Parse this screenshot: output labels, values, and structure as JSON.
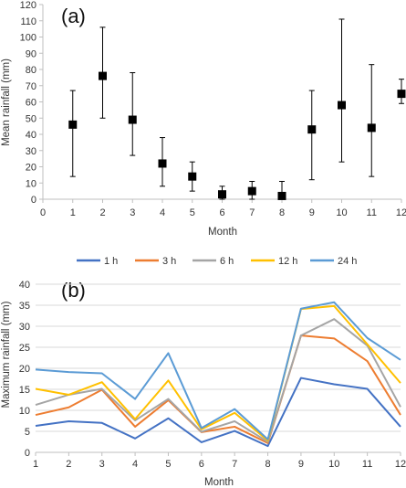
{
  "chart_data": [
    {
      "type": "scatter",
      "panel_label": "(a)",
      "xlabel": "Month",
      "ylabel": "Mean rainfall (mm)",
      "xlim": [
        0,
        12
      ],
      "ylim": [
        0,
        120
      ],
      "xticks": [
        "0",
        "1",
        "2",
        "3",
        "4",
        "5",
        "6",
        "7",
        "8",
        "9",
        "10",
        "11",
        "12"
      ],
      "yticks": [
        "0",
        "10",
        "20",
        "30",
        "40",
        "50",
        "60",
        "70",
        "80",
        "90",
        "100",
        "110",
        "120"
      ],
      "grid": false,
      "legend": "none",
      "marker_color": "#000000",
      "points": [
        {
          "x": 1,
          "y": 46,
          "lo": 14,
          "hi": 67
        },
        {
          "x": 2,
          "y": 76,
          "lo": 50,
          "hi": 106
        },
        {
          "x": 3,
          "y": 49,
          "lo": 27,
          "hi": 78
        },
        {
          "x": 4,
          "y": 22,
          "lo": 8,
          "hi": 38
        },
        {
          "x": 5,
          "y": 14,
          "lo": 5,
          "hi": 23
        },
        {
          "x": 6,
          "y": 3,
          "lo": 0,
          "hi": 8
        },
        {
          "x": 7,
          "y": 5,
          "lo": 0,
          "hi": 11
        },
        {
          "x": 8,
          "y": 2,
          "lo": 0,
          "hi": 11
        },
        {
          "x": 9,
          "y": 43,
          "lo": 12,
          "hi": 67
        },
        {
          "x": 10,
          "y": 58,
          "lo": 23,
          "hi": 111
        },
        {
          "x": 11,
          "y": 44,
          "lo": 14,
          "hi": 83
        },
        {
          "x": 12,
          "y": 65,
          "lo": 59,
          "hi": 74
        }
      ]
    },
    {
      "type": "line",
      "panel_label": "(b)",
      "xlabel": "Month",
      "ylabel": "Maximum rainfall (mm)",
      "xlim": [
        1,
        12
      ],
      "ylim": [
        0,
        40
      ],
      "xticks": [
        "1",
        "2",
        "3",
        "4",
        "5",
        "6",
        "7",
        "8",
        "9",
        "10",
        "11",
        "12"
      ],
      "yticks": [
        "0",
        "5",
        "10",
        "15",
        "20",
        "25",
        "30",
        "35",
        "40"
      ],
      "grid": true,
      "legend": "top-center",
      "categories": [
        1,
        2,
        3,
        4,
        5,
        6,
        7,
        8,
        9,
        10,
        11,
        12
      ],
      "series": [
        {
          "name": "1 h",
          "color": "#4472C4",
          "values": [
            6.3,
            7.4,
            7.0,
            3.3,
            8.1,
            2.4,
            5.1,
            1.5,
            17.7,
            16.2,
            15.1,
            6.1
          ]
        },
        {
          "name": "3 h",
          "color": "#ED7D31",
          "values": [
            8.9,
            10.7,
            14.9,
            6.1,
            12.4,
            4.8,
            6.1,
            2.2,
            27.8,
            27.1,
            21.7,
            8.9
          ]
        },
        {
          "name": "6 h",
          "color": "#A5A5A5",
          "values": [
            11.3,
            13.7,
            15.1,
            7.6,
            12.7,
            4.9,
            7.4,
            2.5,
            27.8,
            31.7,
            25.4,
            10.8
          ]
        },
        {
          "name": "12 h",
          "color": "#FFC000",
          "values": [
            15.1,
            13.7,
            16.7,
            7.9,
            17.1,
            5.5,
            9.4,
            2.8,
            34.1,
            34.8,
            25.7,
            16.5
          ]
        },
        {
          "name": "24 h",
          "color": "#5B9BD5",
          "values": [
            19.7,
            19.1,
            18.8,
            12.7,
            23.6,
            5.8,
            10.3,
            3.1,
            34.2,
            35.7,
            27.2,
            22.0
          ]
        }
      ]
    }
  ]
}
